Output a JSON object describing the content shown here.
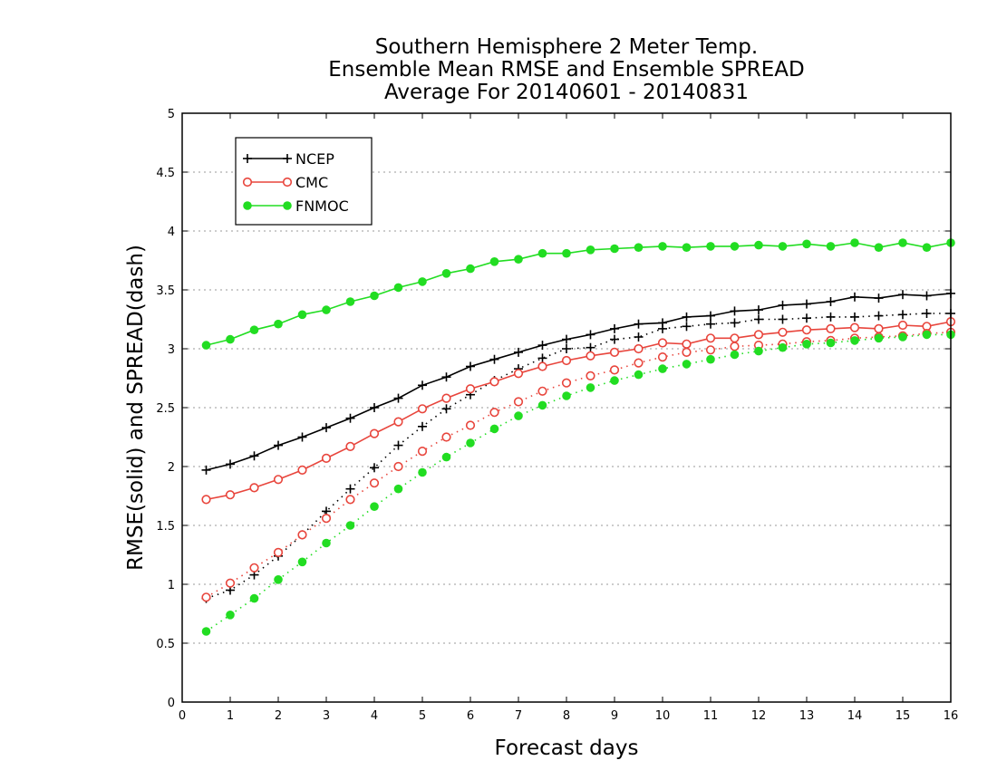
{
  "chart_data": {
    "type": "line",
    "title_lines": [
      "Southern Hemisphere 2 Meter Temp.",
      "Ensemble Mean RMSE and Ensemble SPREAD",
      "Average For 20140601 - 20140831"
    ],
    "xlabel": "Forecast days",
    "ylabel": "RMSE(solid) and SPREAD(dash)",
    "xlim": [
      0,
      16
    ],
    "ylim": [
      0,
      5
    ],
    "xticks": [
      0,
      1,
      2,
      3,
      4,
      5,
      6,
      7,
      8,
      9,
      10,
      11,
      12,
      13,
      14,
      15,
      16
    ],
    "yticks": [
      0,
      0.5,
      1,
      1.5,
      2,
      2.5,
      3,
      3.5,
      4,
      4.5,
      5
    ],
    "grid": "horizontal dotted",
    "legend_position": "top-left",
    "x": [
      0.5,
      1,
      1.5,
      2,
      2.5,
      3,
      3.5,
      4,
      4.5,
      5,
      5.5,
      6,
      6.5,
      7,
      7.5,
      8,
      8.5,
      9,
      9.5,
      10,
      10.5,
      11,
      11.5,
      12,
      12.5,
      13,
      13.5,
      14,
      14.5,
      15,
      15.5,
      16
    ],
    "series": [
      {
        "name": "NCEP",
        "marker": "plus",
        "color": "#000000",
        "rmse": [
          1.97,
          2.02,
          2.09,
          2.18,
          2.25,
          2.33,
          2.41,
          2.5,
          2.58,
          2.69,
          2.76,
          2.85,
          2.91,
          2.97,
          3.03,
          3.08,
          3.12,
          3.17,
          3.21,
          3.22,
          3.27,
          3.28,
          3.32,
          3.33,
          3.37,
          3.38,
          3.4,
          3.44,
          3.43,
          3.46,
          3.45,
          3.47
        ],
        "spread": [
          0.88,
          0.95,
          1.08,
          1.24,
          1.42,
          1.62,
          1.81,
          1.99,
          2.18,
          2.34,
          2.49,
          2.61,
          2.73,
          2.83,
          2.92,
          3.0,
          3.01,
          3.08,
          3.1,
          3.17,
          3.19,
          3.21,
          3.22,
          3.25,
          3.25,
          3.26,
          3.27,
          3.27,
          3.28,
          3.29,
          3.3,
          3.3
        ]
      },
      {
        "name": "CMC",
        "marker": "circle-open",
        "color": "#e8453c",
        "rmse": [
          1.72,
          1.76,
          1.82,
          1.89,
          1.97,
          2.07,
          2.17,
          2.28,
          2.38,
          2.49,
          2.58,
          2.66,
          2.72,
          2.79,
          2.85,
          2.9,
          2.94,
          2.97,
          3.0,
          3.05,
          3.04,
          3.09,
          3.09,
          3.12,
          3.14,
          3.16,
          3.17,
          3.18,
          3.17,
          3.2,
          3.19,
          3.23
        ],
        "spread": [
          0.89,
          1.01,
          1.14,
          1.27,
          1.42,
          1.56,
          1.72,
          1.86,
          2.0,
          2.13,
          2.25,
          2.35,
          2.46,
          2.55,
          2.64,
          2.71,
          2.77,
          2.82,
          2.88,
          2.93,
          2.97,
          2.99,
          3.02,
          3.03,
          3.04,
          3.06,
          3.07,
          3.09,
          3.1,
          3.11,
          3.13,
          3.14
        ]
      },
      {
        "name": "FNMOC",
        "marker": "circle-filled",
        "color": "#22dd22",
        "rmse": [
          3.03,
          3.08,
          3.16,
          3.21,
          3.29,
          3.33,
          3.4,
          3.45,
          3.52,
          3.57,
          3.64,
          3.68,
          3.74,
          3.76,
          3.81,
          3.81,
          3.84,
          3.85,
          3.86,
          3.87,
          3.86,
          3.87,
          3.87,
          3.88,
          3.87,
          3.89,
          3.87,
          3.9,
          3.86,
          3.9,
          3.86,
          3.9
        ],
        "spread": [
          0.6,
          0.74,
          0.88,
          1.04,
          1.19,
          1.35,
          1.5,
          1.66,
          1.81,
          1.95,
          2.08,
          2.2,
          2.32,
          2.43,
          2.52,
          2.6,
          2.67,
          2.73,
          2.78,
          2.83,
          2.87,
          2.91,
          2.95,
          2.98,
          3.01,
          3.04,
          3.05,
          3.07,
          3.09,
          3.1,
          3.12,
          3.12
        ]
      }
    ]
  }
}
